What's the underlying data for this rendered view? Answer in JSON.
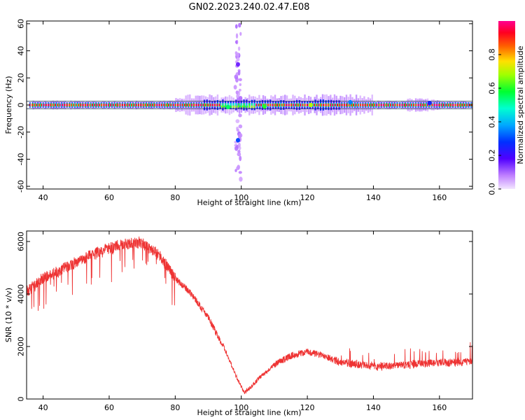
{
  "figure": {
    "title": "GN02.2023.240.02.47.E08"
  },
  "chart_data": [
    {
      "type": "heatmap",
      "xlabel": "Height of straight line (km)",
      "ylabel": "Frequency (Hz)",
      "xlim": [
        35,
        170
      ],
      "ylim": [
        -62,
        62
      ],
      "xticks": [
        40,
        60,
        80,
        100,
        120,
        140,
        160
      ],
      "yticks": [
        -60,
        -40,
        -20,
        0,
        20,
        40,
        60
      ],
      "ytick_labels": [
        "-60",
        "-40",
        "-20",
        "0",
        "20",
        "40",
        "60"
      ],
      "colorbar": {
        "label": "Normalized spectral amplitude",
        "range": [
          0,
          1
        ],
        "ticks": [
          0.0,
          0.2,
          0.4,
          0.6,
          0.8
        ],
        "tick_labels": [
          "0.0",
          "0.2",
          "0.4",
          "0.6",
          "0.8"
        ],
        "colormap": [
          "#f0e0ff",
          "#b060ff",
          "#0000ff",
          "#00c0ff",
          "#00ff00",
          "#ffff00",
          "#ff8000",
          "#ff0000",
          "#ff00a0"
        ]
      },
      "band": {
        "center_hz": 0,
        "core_halfwidth_hz": 1.2,
        "x_range": [
          35,
          170
        ]
      },
      "vertical_spread": {
        "x": 99,
        "frequency_range": [
          -62,
          62
        ]
      },
      "features": [
        {
          "x": 96,
          "y": -1.5,
          "amplitude": 0.55
        },
        {
          "x": 99,
          "y": -26,
          "amplitude": 0.3
        },
        {
          "x": 99,
          "y": 30,
          "amplitude": 0.15
        },
        {
          "x": 107,
          "y": -1,
          "amplitude": 0.6
        },
        {
          "x": 121,
          "y": 0,
          "amplitude": 0.7
        },
        {
          "x": 133,
          "y": 2,
          "amplitude": 0.35
        },
        {
          "x": 157,
          "y": 1.5,
          "amplitude": 0.25
        }
      ]
    },
    {
      "type": "line",
      "xlabel": "Height of straight line (km)",
      "ylabel": "SNR (10 * v/v)",
      "xlim": [
        35,
        170
      ],
      "ylim": [
        0,
        6400
      ],
      "xticks": [
        40,
        60,
        80,
        100,
        120,
        140,
        160
      ],
      "yticks": [
        0,
        2000,
        4000,
        6000
      ],
      "color": "#ee3333",
      "series": [
        {
          "x": [
            35,
            40,
            45,
            50,
            55,
            60,
            65,
            70,
            75,
            78,
            80,
            85,
            90,
            95,
            98,
            100,
            101,
            103,
            105,
            110,
            115,
            120,
            125,
            130,
            135,
            140,
            145,
            150,
            155,
            160,
            165,
            170
          ],
          "values": [
            4100,
            4600,
            4900,
            5200,
            5500,
            5750,
            5900,
            5950,
            5500,
            5000,
            4600,
            4000,
            3100,
            1900,
            1000,
            450,
            250,
            450,
            750,
            1300,
            1650,
            1800,
            1650,
            1400,
            1300,
            1250,
            1250,
            1300,
            1350,
            1400,
            1400,
            1450
          ]
        }
      ]
    }
  ]
}
